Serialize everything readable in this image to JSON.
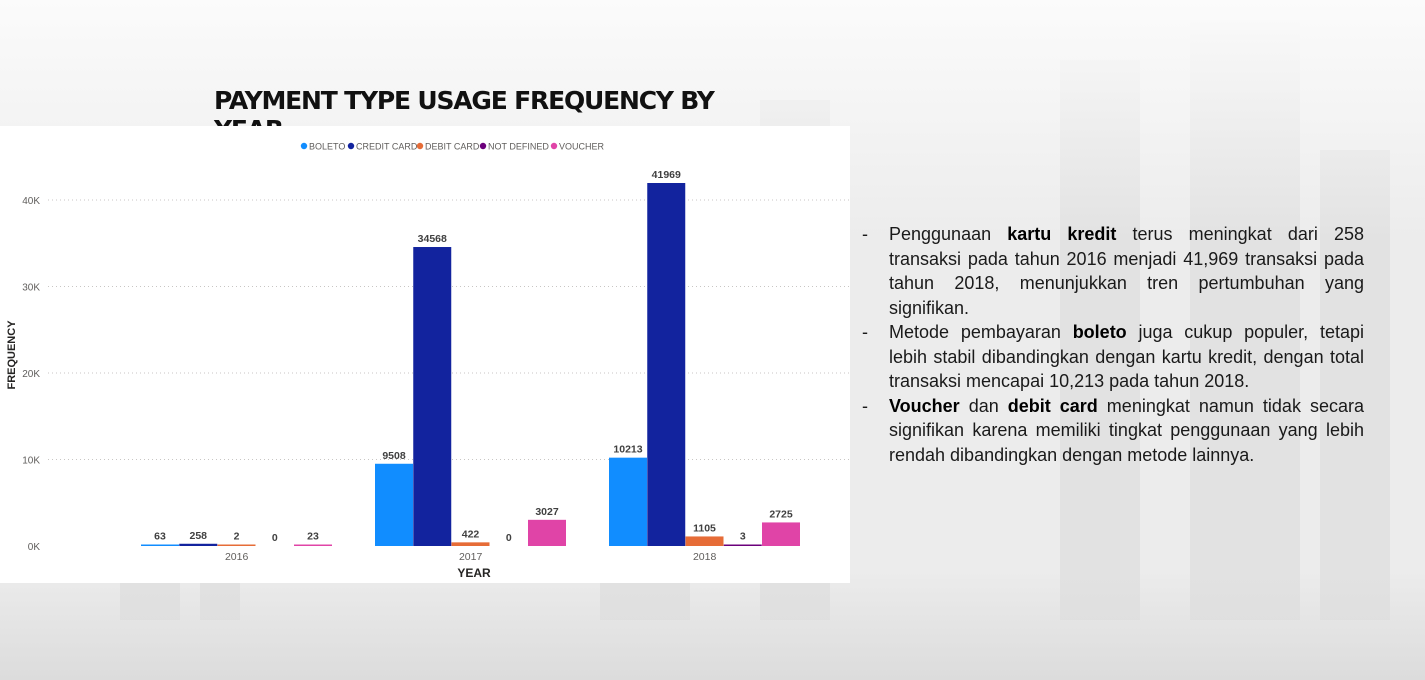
{
  "chart_data": {
    "type": "bar",
    "title": "PAYMENT TYPE USAGE FREQUENCY BY YEAR",
    "xlabel": "YEAR",
    "ylabel": "FREQUENCY",
    "categories": [
      "2016",
      "2017",
      "2018"
    ],
    "series": [
      {
        "name": "BOLETO",
        "color": "#118DFF",
        "values": [
          63,
          9508,
          10213
        ]
      },
      {
        "name": "CREDIT CARD",
        "color": "#12239E",
        "values": [
          258,
          34568,
          41969
        ]
      },
      {
        "name": "DEBIT CARD",
        "color": "#E66C37",
        "values": [
          2,
          422,
          1105
        ]
      },
      {
        "name": "NOT DEFINED",
        "color": "#6B007B",
        "values": [
          0,
          0,
          3
        ]
      },
      {
        "name": "VOUCHER",
        "color": "#E044A7",
        "values": [
          23,
          3027,
          2725
        ]
      }
    ],
    "yticks": [
      {
        "value": 0,
        "label": "0K"
      },
      {
        "value": 10000,
        "label": "10K"
      },
      {
        "value": 20000,
        "label": "20K"
      },
      {
        "value": 30000,
        "label": "30K"
      },
      {
        "value": 40000,
        "label": "40K"
      }
    ],
    "ylim": [
      0,
      41969
    ],
    "grid": true,
    "legend_position": "top"
  },
  "notes": [
    {
      "segments": [
        {
          "text": "Penggunaan ",
          "bold": false
        },
        {
          "text": "kartu kredit",
          "bold": true
        },
        {
          "text": " terus meningkat dari 258 transaksi pada tahun 2016 menjadi 41,969 transaksi pada tahun 2018, menunjukkan tren pertumbuhan yang signifikan.",
          "bold": false
        }
      ]
    },
    {
      "segments": [
        {
          "text": "Metode pembayaran ",
          "bold": false
        },
        {
          "text": "boleto",
          "bold": true
        },
        {
          "text": " juga cukup populer, tetapi lebih stabil dibandingkan dengan kartu kredit, dengan total transaksi mencapai 10,213 pada tahun 2018.",
          "bold": false
        }
      ]
    },
    {
      "segments": [
        {
          "text": "Voucher",
          "bold": true
        },
        {
          "text": " dan ",
          "bold": false
        },
        {
          "text": "debit card",
          "bold": true
        },
        {
          "text": " meningkat namun tidak secara signifikan karena memiliki tingkat penggunaan yang lebih rendah dibandingkan dengan metode lainnya.",
          "bold": false
        }
      ]
    }
  ],
  "bullet_char": "-"
}
